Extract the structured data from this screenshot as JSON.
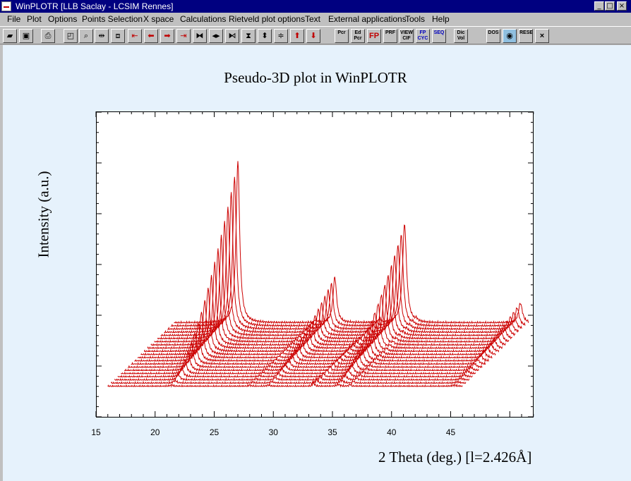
{
  "window": {
    "title": "WinPLOTR [LLB Saclay - LCSIM Rennes]",
    "controls": [
      "_",
      "□",
      "×"
    ]
  },
  "menu": [
    "File",
    "Plot",
    "Options",
    "Points Selection",
    "X space",
    "Calculations",
    "Rietveld plot options",
    "Text",
    "External applications",
    "Tools",
    "Help"
  ],
  "toolbar": {
    "icons": [
      "open-folder-icon",
      "save-icon",
      "print-icon",
      "zoom-preview-icon",
      "zoom-icon",
      "expand-horizontal-icon",
      "fit-window-icon",
      "go-first-icon",
      "arrow-left-icon",
      "arrow-right-icon",
      "go-last-icon",
      "compress-x-icon",
      "expand-x-icon",
      "shrink-x-icon",
      "compress-y-icon",
      "expand-y-icon",
      "arrow-up-icon",
      "arrow-down-icon"
    ],
    "text_buttons": [
      "Pcr",
      "Ed Pcr",
      "FP",
      "PRF",
      "VIEW CIF",
      "FP CYC",
      "SEQ",
      "Dic Vol",
      "DOS",
      "",
      "RESET",
      "×"
    ]
  },
  "plot": {
    "title": "Pseudo-3D plot in WinPLOTR",
    "xlabel": "2 Theta (deg.) [l=2.426Å]",
    "ylabel": "Intensity (a.u.)",
    "trace_color": "#cc0000"
  },
  "chart_data": {
    "type": "line",
    "title": "Pseudo-3D plot in WinPLOTR",
    "xlabel": "2 Theta (deg.) [l=2.426Å]",
    "ylabel": "Intensity (a.u.)",
    "xlim": [
      15,
      52
    ],
    "x_ticks": [
      15,
      20,
      25,
      30,
      35,
      40,
      45
    ],
    "y_tick_labels_shown": false,
    "n_traces": 21,
    "stack_offset_x_deg": 0.28,
    "peaks": [
      {
        "center": 21.4,
        "amplitude_first": 2,
        "amplitude_last": 230,
        "width": 0.18
      },
      {
        "center": 28.0,
        "amplitude_first": 2,
        "amplitude_last": 4,
        "width": 0.12
      },
      {
        "center": 29.6,
        "amplitude_first": 2,
        "amplitude_last": 65,
        "width": 0.18
      },
      {
        "center": 33.4,
        "amplitude_first": 6,
        "amplitude_last": 6,
        "width": 0.1
      },
      {
        "center": 35.5,
        "amplitude_first": 3,
        "amplitude_last": 140,
        "width": 0.2
      },
      {
        "center": 36.5,
        "amplitude_first": 3,
        "amplitude_last": 3,
        "width": 0.1
      },
      {
        "center": 45.3,
        "amplitude_first": 2,
        "amplitude_last": 28,
        "width": 0.2
      }
    ]
  }
}
